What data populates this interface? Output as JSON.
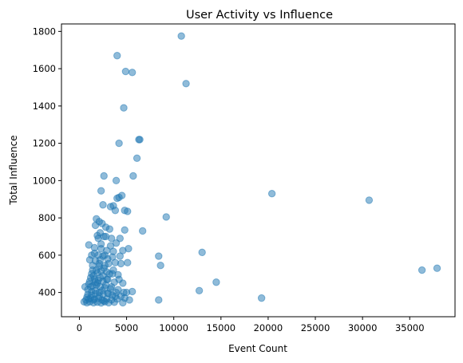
{
  "chart_data": {
    "type": "scatter",
    "title": "User Activity vs Influence",
    "xlabel": "Event Count",
    "ylabel": "Total Influence",
    "xlim": [
      -1900,
      39800
    ],
    "ylim": [
      270,
      1840
    ],
    "xticks": [
      0,
      5000,
      10000,
      15000,
      20000,
      25000,
      30000,
      35000
    ],
    "yticks": [
      400,
      600,
      800,
      1000,
      1200,
      1400,
      1600,
      1800
    ],
    "grid": false,
    "legend": "none",
    "color": "#1f77b4",
    "alpha": 0.5,
    "points": [
      [
        10800,
        1775
      ],
      [
        4000,
        1670
      ],
      [
        4900,
        1585
      ],
      [
        5600,
        1580
      ],
      [
        11300,
        1520
      ],
      [
        4700,
        1390
      ],
      [
        6400,
        1220
      ],
      [
        6300,
        1220
      ],
      [
        4200,
        1200
      ],
      [
        6100,
        1120
      ],
      [
        2600,
        1025
      ],
      [
        5700,
        1025
      ],
      [
        3900,
        1000
      ],
      [
        2300,
        945
      ],
      [
        4200,
        910
      ],
      [
        4500,
        920
      ],
      [
        4000,
        905
      ],
      [
        20400,
        930
      ],
      [
        30700,
        895
      ],
      [
        2500,
        870
      ],
      [
        3300,
        860
      ],
      [
        3600,
        865
      ],
      [
        3800,
        840
      ],
      [
        4800,
        840
      ],
      [
        5100,
        835
      ],
      [
        9200,
        805
      ],
      [
        1800,
        795
      ],
      [
        2100,
        780
      ],
      [
        2400,
        770
      ],
      [
        1700,
        760
      ],
      [
        2800,
        750
      ],
      [
        3200,
        740
      ],
      [
        6700,
        730
      ],
      [
        4800,
        735
      ],
      [
        2200,
        720
      ],
      [
        1900,
        705
      ],
      [
        2600,
        700
      ],
      [
        3400,
        690
      ],
      [
        4300,
        690
      ],
      [
        3900,
        665
      ],
      [
        1000,
        655
      ],
      [
        1600,
        640
      ],
      [
        2300,
        635
      ],
      [
        2900,
        625
      ],
      [
        3600,
        620
      ],
      [
        4600,
        625
      ],
      [
        5200,
        635
      ],
      [
        1300,
        600
      ],
      [
        2500,
        595
      ],
      [
        3500,
        590
      ],
      [
        4300,
        595
      ],
      [
        8400,
        595
      ],
      [
        13000,
        615
      ],
      [
        1100,
        575
      ],
      [
        1700,
        570
      ],
      [
        2100,
        555
      ],
      [
        2700,
        545
      ],
      [
        3100,
        555
      ],
      [
        3800,
        560
      ],
      [
        4400,
        555
      ],
      [
        5100,
        560
      ],
      [
        8600,
        545
      ],
      [
        1400,
        520
      ],
      [
        1900,
        505
      ],
      [
        2300,
        515
      ],
      [
        2900,
        510
      ],
      [
        3500,
        500
      ],
      [
        4100,
        495
      ],
      [
        1200,
        480
      ],
      [
        1600,
        470
      ],
      [
        2000,
        465
      ],
      [
        2500,
        460
      ],
      [
        3000,
        470
      ],
      [
        3700,
        455
      ],
      [
        4600,
        450
      ],
      [
        14500,
        455
      ],
      [
        36300,
        520
      ],
      [
        37900,
        530
      ],
      [
        1000,
        445
      ],
      [
        1400,
        435
      ],
      [
        1800,
        440
      ],
      [
        2200,
        430
      ],
      [
        2700,
        425
      ],
      [
        3300,
        420
      ],
      [
        4100,
        415
      ],
      [
        5000,
        400
      ],
      [
        5600,
        405
      ],
      [
        12700,
        410
      ],
      [
        600,
        430
      ],
      [
        900,
        415
      ],
      [
        1300,
        405
      ],
      [
        1700,
        395
      ],
      [
        2100,
        400
      ],
      [
        2500,
        390
      ],
      [
        3000,
        395
      ],
      [
        3500,
        385
      ],
      [
        4400,
        380
      ],
      [
        800,
        375
      ],
      [
        1200,
        370
      ],
      [
        1600,
        365
      ],
      [
        2000,
        370
      ],
      [
        2400,
        360
      ],
      [
        2900,
        365
      ],
      [
        3400,
        360
      ],
      [
        4000,
        365
      ],
      [
        4800,
        370
      ],
      [
        5300,
        360
      ],
      [
        8400,
        360
      ],
      [
        19300,
        370
      ],
      [
        500,
        350
      ],
      [
        800,
        345
      ],
      [
        1100,
        350
      ],
      [
        1500,
        345
      ],
      [
        1900,
        348
      ],
      [
        2300,
        344
      ],
      [
        2700,
        350
      ],
      [
        3100,
        345
      ],
      [
        3700,
        348
      ],
      [
        4600,
        345
      ],
      [
        1300,
        385
      ],
      [
        1700,
        410
      ],
      [
        2200,
        480
      ],
      [
        2600,
        530
      ],
      [
        1400,
        545
      ],
      [
        2000,
        600
      ],
      [
        3000,
        580
      ],
      [
        1500,
        490
      ],
      [
        2800,
        440
      ],
      [
        3200,
        500
      ],
      [
        1100,
        460
      ],
      [
        2400,
        410
      ],
      [
        1800,
        520
      ],
      [
        3300,
        650
      ],
      [
        2000,
        690
      ],
      [
        900,
        390
      ],
      [
        1500,
        360
      ],
      [
        2100,
        380
      ],
      [
        2600,
        355
      ],
      [
        3900,
        400
      ],
      [
        1200,
        430
      ],
      [
        2900,
        470
      ],
      [
        3600,
        520
      ],
      [
        1600,
        610
      ],
      [
        2200,
        575
      ],
      [
        700,
        360
      ],
      [
        1900,
        450
      ],
      [
        3400,
        430
      ],
      [
        4200,
        470
      ],
      [
        2700,
        600
      ],
      [
        2300,
        660
      ],
      [
        1300,
        500
      ],
      [
        3100,
        395
      ],
      [
        2500,
        490
      ],
      [
        1000,
        365
      ],
      [
        1700,
        455
      ],
      [
        3800,
        380
      ],
      [
        4700,
        400
      ],
      [
        2100,
        540
      ],
      [
        2800,
        700
      ]
    ]
  }
}
